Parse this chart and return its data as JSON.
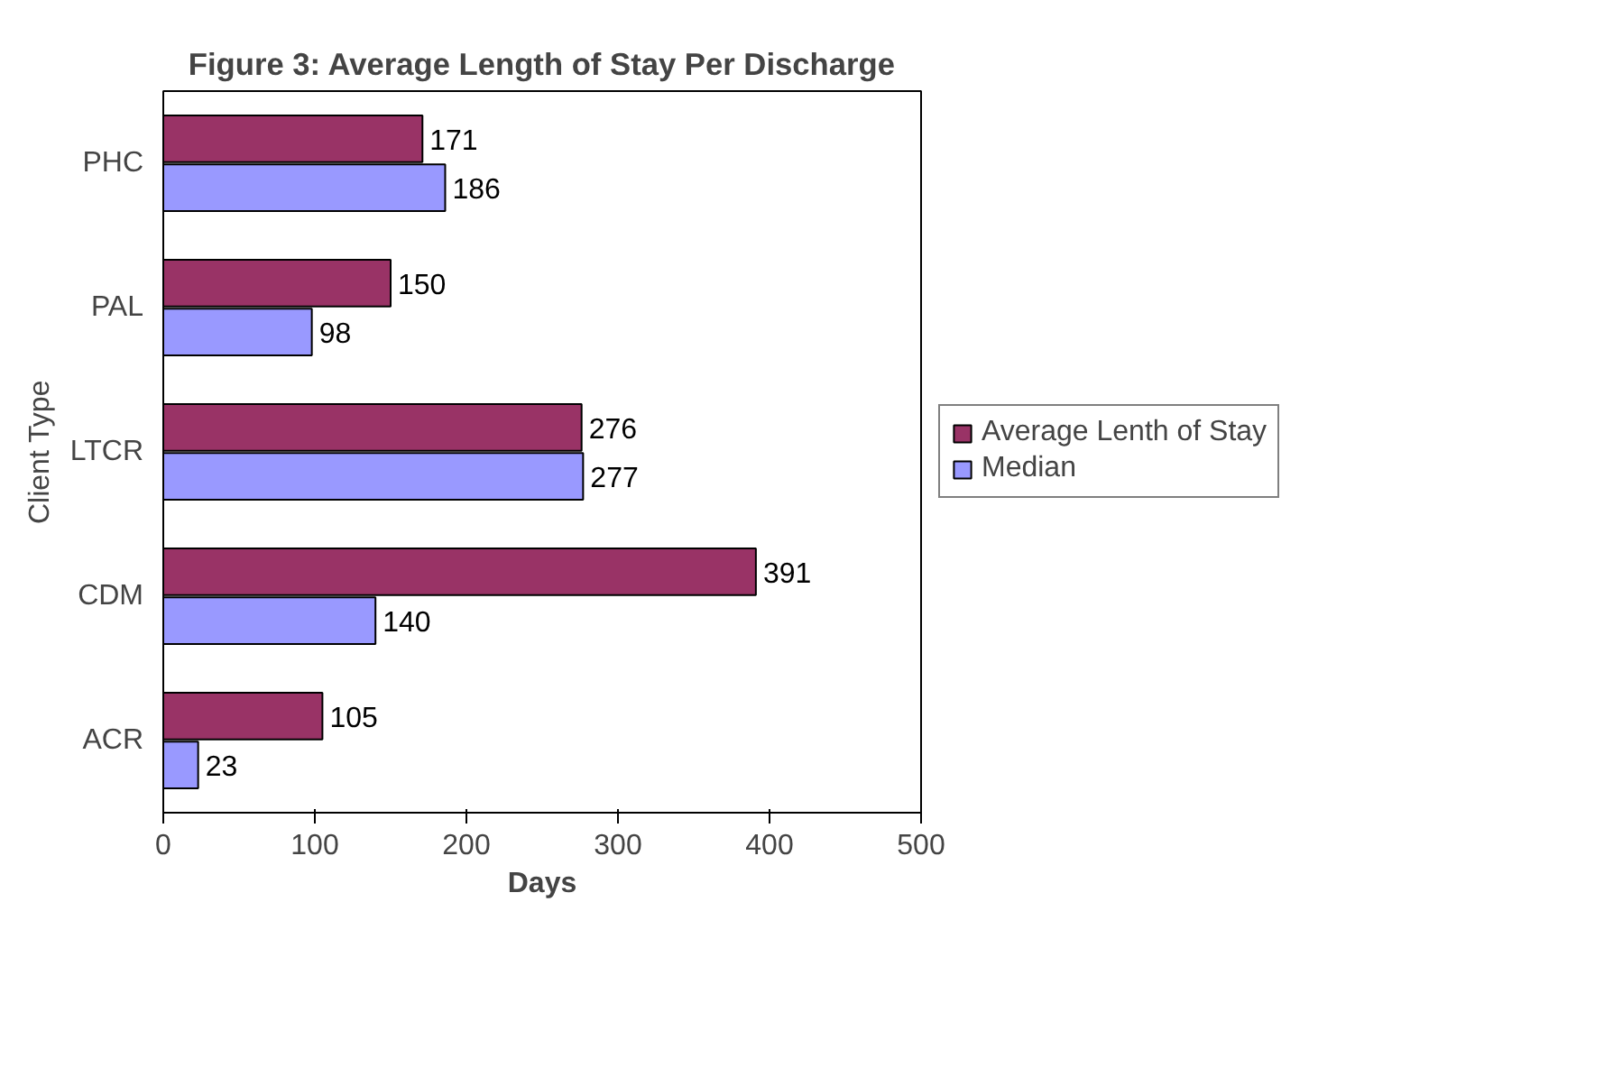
{
  "chart_data": {
    "type": "bar",
    "orientation": "horizontal",
    "title": "Figure 3: Average Length of Stay Per Discharge",
    "xlabel": "Days",
    "ylabel": "Client Type",
    "categories": [
      "PHC",
      "PAL",
      "LTCR",
      "CDM",
      "ACR"
    ],
    "series": [
      {
        "name": "Average Lenth of Stay",
        "color": "#993366",
        "values": [
          171,
          150,
          276,
          391,
          105
        ]
      },
      {
        "name": "Median",
        "color": "#9999ff",
        "values": [
          186,
          98,
          277,
          140,
          23
        ]
      }
    ],
    "xlim": [
      0,
      500
    ],
    "xticks": [
      0,
      100,
      200,
      300,
      400,
      500
    ],
    "data_labels": true,
    "grid": false,
    "legend": "right"
  }
}
